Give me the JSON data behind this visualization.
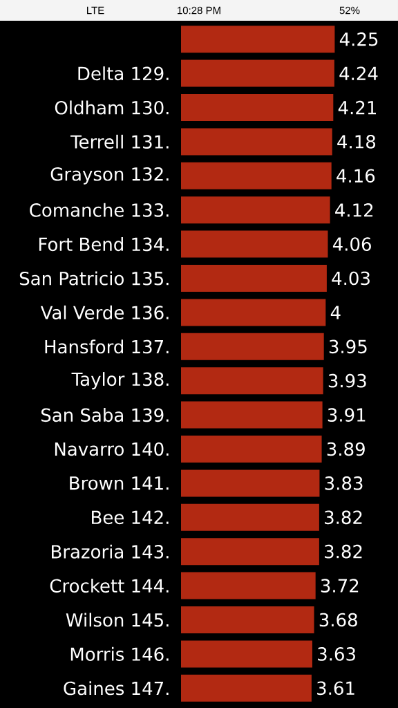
{
  "chart_data": {
    "type": "bar",
    "orientation": "horizontal",
    "categories": [
      null,
      "Delta 129.",
      "Oldham 130.",
      "Terrell 131.",
      "Grayson 132.",
      "Comanche 133.",
      "Fort Bend 134.",
      "San Patricio 135.",
      "Val Verde 136.",
      "Hansford 137.",
      "Taylor 138.",
      "San Saba 139.",
      "Navarro 140.",
      "Brown 141.",
      "Bee 142.",
      "Brazoria 143.",
      "Crockett 144.",
      "Wilson 145.",
      "Morris 146.",
      "Gaines 147."
    ],
    "values": [
      4.25,
      4.24,
      4.21,
      4.18,
      4.16,
      4.12,
      4.06,
      4.03,
      4,
      3.95,
      3.93,
      3.91,
      3.89,
      3.83,
      3.82,
      3.82,
      3.72,
      3.68,
      3.63,
      3.61
    ],
    "color": "#b22912",
    "xlim": [
      0,
      6
    ],
    "data_labels": true,
    "annotations": [
      "LTE",
      "10:28 PM",
      "52%"
    ]
  }
}
